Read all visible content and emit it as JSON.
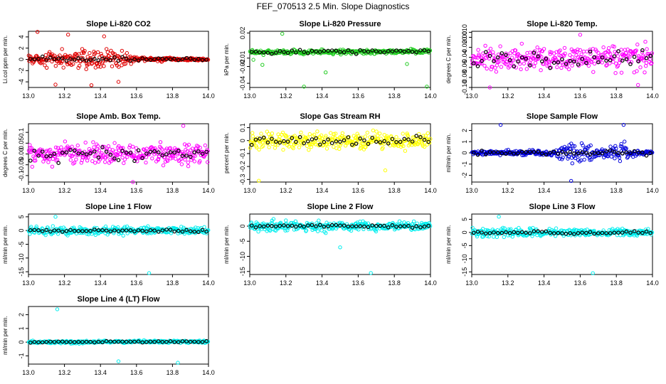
{
  "figure_title": "FEF_070513  2.5 Min. Slope Diagnostics",
  "colors": {
    "red": "#e00000",
    "green": "#22cc22",
    "magenta": "#ff00ff",
    "yellow": "#ffff00",
    "blue": "#0000dd",
    "cyan": "#00eeee",
    "black": "#000000"
  },
  "chart_data": [
    {
      "type": "scatter",
      "title": "Slope Li-820 CO2",
      "ylabel": "Li.col ppm per min.",
      "xlim": [
        13.0,
        14.0
      ],
      "ylim": [
        -5,
        5
      ],
      "yticks": [
        "-4",
        "-2",
        "0",
        "2",
        "4"
      ],
      "ytick_values": [
        -4,
        -2,
        0,
        2,
        4
      ],
      "xticks": [
        "13.0",
        "13.2",
        "13.4",
        "13.6",
        "13.8",
        "14.0"
      ],
      "xtick_values": [
        13.0,
        13.2,
        13.4,
        13.6,
        13.8,
        14.0
      ],
      "color": "red",
      "spread_envelope": [
        [
          13.0,
          1.2
        ],
        [
          13.15,
          2.0
        ],
        [
          13.3,
          3.0
        ],
        [
          13.45,
          3.0
        ],
        [
          13.55,
          2.2
        ],
        [
          13.6,
          0.7
        ],
        [
          14.0,
          0.3
        ]
      ],
      "spread": 1.0,
      "trend": {
        "x": [
          13.0,
          14.0
        ],
        "y": [
          0.05,
          0.0
        ]
      },
      "outliers": [
        [
          13.05,
          4.9
        ],
        [
          13.15,
          -4.5
        ],
        [
          13.22,
          4.4
        ],
        [
          13.35,
          -4.6
        ],
        [
          13.42,
          4.1
        ],
        [
          13.5,
          -4.0
        ]
      ]
    },
    {
      "type": "scatter",
      "title": "Slope Li-820 Pressure",
      "ylabel": "kPa per min.",
      "xlim": [
        13.0,
        14.0
      ],
      "ylim": [
        -0.045,
        0.022
      ],
      "yticks": [
        "-0.04",
        "-0.02",
        "-0.01",
        "0.02"
      ],
      "ytick_values": [
        -0.04,
        -0.02,
        -0.01,
        0.02
      ],
      "xticks": [
        "13.0",
        "13.2",
        "13.4",
        "13.6",
        "13.8",
        "14.0"
      ],
      "xtick_values": [
        13.0,
        13.2,
        13.4,
        13.6,
        13.8,
        14.0
      ],
      "color": "green",
      "spread_envelope": [
        [
          13.0,
          0.004
        ],
        [
          14.0,
          0.004
        ]
      ],
      "spread": 0.006,
      "trend": {
        "x": [
          13.0,
          14.0
        ],
        "y": [
          -0.003,
          -0.002
        ]
      },
      "outliers": [
        [
          13.02,
          -0.012
        ],
        [
          13.07,
          -0.018
        ],
        [
          13.3,
          -0.044
        ],
        [
          13.42,
          -0.027
        ],
        [
          13.87,
          -0.017
        ],
        [
          13.98,
          -0.044
        ],
        [
          13.18,
          0.019
        ]
      ]
    },
    {
      "type": "scatter",
      "title": "Slope Li-820 Temp.",
      "ylabel": "degrees C per min.",
      "xlim": [
        13.0,
        14.0
      ],
      "ylim": [
        -0.1,
        0.012
      ],
      "yticks": [
        "-0.10",
        "-0.08",
        "-0.06",
        "-0.04",
        "-0.02",
        "0.00",
        "0.010"
      ],
      "ytick_values": [
        -0.1,
        -0.08,
        -0.06,
        -0.04,
        -0.02,
        0.0,
        0.01
      ],
      "xticks": [
        "13.0",
        "13.2",
        "13.4",
        "13.6",
        "13.8",
        "14.0"
      ],
      "xtick_values": [
        13.0,
        13.2,
        13.4,
        13.6,
        13.8,
        14.0
      ],
      "color": "magenta",
      "spread_envelope": [
        [
          13.0,
          0.04
        ],
        [
          14.0,
          0.04
        ]
      ],
      "spread": 0.045,
      "trend": {
        "x": [
          13.0,
          14.0
        ],
        "y": [
          -0.045,
          -0.04
        ]
      },
      "outliers": [
        [
          13.1,
          -0.1
        ],
        [
          13.6,
          0.005
        ],
        [
          13.92,
          -0.095
        ]
      ]
    },
    {
      "type": "scatter",
      "title": "Slope Amb. Box Temp.",
      "ylabel": "degrees C per min.",
      "xlim": [
        13.0,
        14.0
      ],
      "ylim": [
        -0.13,
        0.14
      ],
      "yticks": [
        "-0.1",
        "-0.05",
        "0.00",
        "0.05",
        "0.1"
      ],
      "ytick_values": [
        -0.1,
        -0.05,
        0.0,
        0.05,
        0.1
      ],
      "xticks": [
        "13.0",
        "13.2",
        "13.4",
        "13.6",
        "13.8",
        "14.0"
      ],
      "xtick_values": [
        13.0,
        13.2,
        13.4,
        13.6,
        13.8,
        14.0
      ],
      "color": "magenta",
      "spread_envelope": [
        [
          13.0,
          0.08
        ],
        [
          14.0,
          0.08
        ]
      ],
      "spread": 0.08,
      "trend": {
        "x": [
          13.0,
          14.0
        ],
        "y": [
          0.0,
          0.0
        ]
      },
      "outliers": [
        [
          13.58,
          -0.13
        ],
        [
          13.86,
          0.13
        ]
      ]
    },
    {
      "type": "scatter",
      "title": "Slope Gas Stream RH",
      "ylabel": "percent per min.",
      "xlim": [
        13.0,
        14.0
      ],
      "ylim": [
        -0.32,
        0.13
      ],
      "yticks": [
        "-0.3",
        "-0.2",
        "-0.1",
        "0",
        "0.1"
      ],
      "ytick_values": [
        -0.3,
        -0.2,
        -0.1,
        0,
        0.1
      ],
      "xticks": [
        "13.0",
        "13.2",
        "13.4",
        "13.6",
        "13.8",
        "14.0"
      ],
      "xtick_values": [
        13.0,
        13.2,
        13.4,
        13.6,
        13.8,
        14.0
      ],
      "color": "yellow",
      "spread_envelope": [
        [
          13.0,
          0.1
        ],
        [
          14.0,
          0.1
        ]
      ],
      "spread": 0.1,
      "trend": {
        "x": [
          13.0,
          14.0
        ],
        "y": [
          0.0,
          0.0
        ]
      },
      "outliers": [
        [
          13.05,
          -0.31
        ],
        [
          13.75,
          -0.23
        ]
      ]
    },
    {
      "type": "scatter",
      "title": "Slope Sample Flow",
      "ylabel": "ml/min per min.",
      "xlim": [
        13.0,
        14.0
      ],
      "ylim": [
        -2.6,
        2.6
      ],
      "yticks": [
        "-2",
        "-1",
        "0",
        "1",
        "2"
      ],
      "ytick_values": [
        -2,
        -1,
        0,
        1,
        2
      ],
      "xticks": [
        "13.0",
        "13.2",
        "13.4",
        "13.6",
        "13.8",
        "14.0"
      ],
      "xtick_values": [
        13.0,
        13.2,
        13.4,
        13.6,
        13.8,
        14.0
      ],
      "color": "blue",
      "spread_envelope": [
        [
          13.0,
          0.35
        ],
        [
          13.45,
          0.35
        ],
        [
          13.5,
          1.6
        ],
        [
          13.65,
          1.6
        ],
        [
          13.7,
          0.6
        ],
        [
          13.8,
          1.3
        ],
        [
          13.85,
          1.3
        ],
        [
          13.9,
          0.35
        ],
        [
          14.0,
          0.35
        ]
      ],
      "spread": 0.5,
      "trend": {
        "x": [
          13.0,
          14.0
        ],
        "y": [
          0.0,
          0.0
        ]
      },
      "outliers": [
        [
          13.16,
          2.5
        ],
        [
          13.55,
          -2.5
        ],
        [
          13.84,
          2.5
        ]
      ]
    },
    {
      "type": "scatter",
      "title": "Slope Line 1 Flow",
      "ylabel": "ml/min per min.",
      "xlim": [
        13.0,
        14.0
      ],
      "ylim": [
        -16,
        6
      ],
      "yticks": [
        "-15",
        "-10",
        "-5",
        "0",
        "5"
      ],
      "ytick_values": [
        -15,
        -10,
        -5,
        0,
        5
      ],
      "xticks": [
        "13.0",
        "13.2",
        "13.4",
        "13.6",
        "13.8",
        "14.0"
      ],
      "xtick_values": [
        13.0,
        13.2,
        13.4,
        13.6,
        13.8,
        14.0
      ],
      "color": "cyan",
      "spread_envelope": [
        [
          13.0,
          2.5
        ],
        [
          14.0,
          2.0
        ]
      ],
      "spread": 1.5,
      "trend": {
        "x": [
          13.0,
          14.0
        ],
        "y": [
          0.0,
          0.0
        ]
      },
      "outliers": [
        [
          13.67,
          -15.5
        ],
        [
          13.15,
          5.0
        ]
      ]
    },
    {
      "type": "scatter",
      "title": "Slope Line 2 Flow",
      "ylabel": "ml/min per min.",
      "xlim": [
        13.0,
        14.0
      ],
      "ylim": [
        -16,
        4
      ],
      "yticks": [
        "-15",
        "-10",
        "-5",
        "0"
      ],
      "ytick_values": [
        -15,
        -10,
        -5,
        0
      ],
      "xticks": [
        "13.0",
        "13.2",
        "13.4",
        "13.6",
        "13.8",
        "14.0"
      ],
      "xtick_values": [
        13.0,
        13.2,
        13.4,
        13.6,
        13.8,
        14.0
      ],
      "color": "cyan",
      "spread_envelope": [
        [
          13.0,
          2.5
        ],
        [
          13.3,
          3.0
        ],
        [
          14.0,
          2.0
        ]
      ],
      "spread": 1.5,
      "trend": {
        "x": [
          13.0,
          14.0
        ],
        "y": [
          0.0,
          0.0
        ]
      },
      "outliers": [
        [
          13.67,
          -15.5
        ],
        [
          13.5,
          -7.0
        ]
      ]
    },
    {
      "type": "scatter",
      "title": "Slope Line 3 Flow",
      "ylabel": "ml/min per min.",
      "xlim": [
        13.0,
        14.0
      ],
      "ylim": [
        -16,
        7
      ],
      "yticks": [
        "-15",
        "-10",
        "-5",
        "0",
        "5"
      ],
      "ytick_values": [
        -15,
        -10,
        -5,
        0,
        5
      ],
      "xticks": [
        "13.0",
        "13.2",
        "13.4",
        "13.6",
        "13.8",
        "14.0"
      ],
      "xtick_values": [
        13.0,
        13.2,
        13.4,
        13.6,
        13.8,
        14.0
      ],
      "color": "cyan",
      "spread_envelope": [
        [
          13.0,
          3.0
        ],
        [
          14.0,
          2.0
        ]
      ],
      "spread": 1.5,
      "trend": {
        "x": [
          13.0,
          14.0
        ],
        "y": [
          0.0,
          0.0
        ]
      },
      "outliers": [
        [
          13.67,
          -15.5
        ],
        [
          13.15,
          6.0
        ]
      ]
    },
    {
      "type": "scatter",
      "title": "Slope Line 4 (LT) Flow",
      "ylabel": "ml/min per min.",
      "xlim": [
        13.0,
        14.0
      ],
      "ylim": [
        -1.6,
        2.6
      ],
      "yticks": [
        "-1",
        "0",
        "1",
        "2"
      ],
      "ytick_values": [
        -1,
        0,
        1,
        2
      ],
      "xticks": [
        "13.0",
        "13.2",
        "13.4",
        "13.6",
        "13.8",
        "14.0"
      ],
      "xtick_values": [
        13.0,
        13.2,
        13.4,
        13.6,
        13.8,
        14.0
      ],
      "color": "cyan",
      "spread_envelope": [
        [
          13.0,
          0.15
        ],
        [
          14.0,
          0.15
        ]
      ],
      "spread": 0.12,
      "trend": {
        "x": [
          13.0,
          14.0
        ],
        "y": [
          0.0,
          0.05
        ]
      },
      "outliers": [
        [
          13.16,
          2.4
        ],
        [
          13.5,
          -1.4
        ],
        [
          13.83,
          -1.5
        ]
      ]
    }
  ]
}
